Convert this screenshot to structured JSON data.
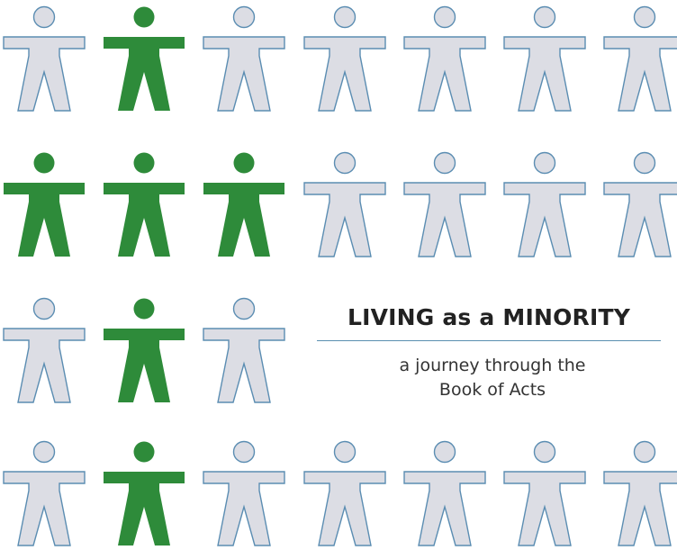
{
  "colors": {
    "highlight": "#2e8b3a",
    "figure_fill": "#dcdde4",
    "figure_outline": "#5b8db2"
  },
  "icon": "person-icon",
  "grid": {
    "rows": [
      [
        "off",
        "on",
        "off",
        "off",
        "off",
        "off",
        "off"
      ],
      [
        "on",
        "on",
        "on",
        "off",
        "off",
        "off",
        "off"
      ],
      [
        "off",
        "on",
        "off"
      ],
      [
        "off",
        "on",
        "off",
        "off",
        "off",
        "off",
        "off"
      ]
    ]
  },
  "title": {
    "main": "LIVING as a MINORITY",
    "subtitle_line1": "a journey through the",
    "subtitle_line2": "Book of Acts"
  }
}
